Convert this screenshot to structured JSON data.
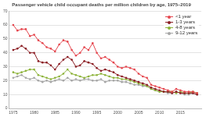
{
  "chart_data": {
    "type": "line",
    "title": "Passenger vehicle child occupant deaths per million children by age, 1975–2019",
    "x": [
      1975,
      1976,
      1977,
      1978,
      1979,
      1980,
      1981,
      1982,
      1983,
      1984,
      1985,
      1986,
      1987,
      1988,
      1989,
      1990,
      1991,
      1992,
      1993,
      1994,
      1995,
      1996,
      1997,
      1998,
      1999,
      2000,
      2001,
      2002,
      2003,
      2004,
      2005,
      2006,
      2007,
      2008,
      2009,
      2010,
      2011,
      2012,
      2013,
      2014,
      2015,
      2016,
      2017,
      2018,
      2019
    ],
    "series": [
      {
        "name": "<1 year",
        "color": "#e5474f",
        "marker": "circle",
        "line_style": "solid",
        "values": [
          60,
          56,
          57,
          57,
          52,
          53,
          49,
          47,
          44,
          43,
          41,
          46,
          49,
          48,
          42,
          38,
          40,
          44,
          42,
          47,
          40,
          36,
          37,
          35,
          33,
          30,
          29,
          30,
          29,
          28,
          25,
          23,
          22,
          17,
          16,
          15,
          14,
          13,
          12,
          14,
          13,
          12,
          12,
          12,
          11
        ]
      },
      {
        "name": "1-3 years",
        "color": "#8b1e24",
        "marker": "circle",
        "line_style": "solid",
        "values": [
          42,
          43,
          45,
          43,
          40,
          40,
          34,
          33,
          33,
          31,
          28,
          32,
          35,
          37,
          35,
          30,
          31,
          34,
          33,
          32,
          29,
          27,
          28,
          27,
          26,
          24,
          23,
          22,
          21,
          20,
          19,
          18,
          17,
          15,
          14,
          13,
          12,
          12,
          11,
          12,
          11,
          11,
          11,
          11,
          10
        ]
      },
      {
        "name": "4-8 years",
        "color": "#8db33a",
        "marker": "circle",
        "line_style": "solid",
        "values": [
          26,
          25,
          26,
          27,
          28,
          28,
          24,
          23,
          22,
          21,
          22,
          23,
          25,
          28,
          25,
          24,
          23,
          22,
          23,
          24,
          24,
          25,
          24,
          23,
          22,
          22,
          21,
          21,
          20,
          19,
          18,
          17,
          16,
          14,
          13,
          12,
          12,
          12,
          12,
          11,
          12,
          11,
          11,
          12,
          11
        ]
      },
      {
        "name": "9-12 years",
        "color": "#a6a6a6",
        "marker": "circle",
        "line_style": "solid",
        "values": [
          22,
          23,
          24,
          22,
          21,
          22,
          20,
          19,
          20,
          19,
          20,
          21,
          20,
          22,
          20,
          21,
          20,
          21,
          21,
          20,
          20,
          21,
          19,
          20,
          20,
          20,
          19,
          19,
          18,
          17,
          17,
          16,
          16,
          14,
          13,
          12,
          12,
          11,
          11,
          12,
          11,
          10,
          10,
          11,
          10
        ]
      }
    ],
    "xlim": [
      1974,
      2020
    ],
    "xticks": [
      1975,
      1980,
      1985,
      1990,
      1995,
      2000,
      2005,
      2010,
      2015
    ],
    "ylim": [
      0,
      70
    ],
    "yticks": [
      0,
      10,
      20,
      30,
      40,
      50,
      60,
      70
    ],
    "grid": true,
    "legend": "upper right"
  }
}
